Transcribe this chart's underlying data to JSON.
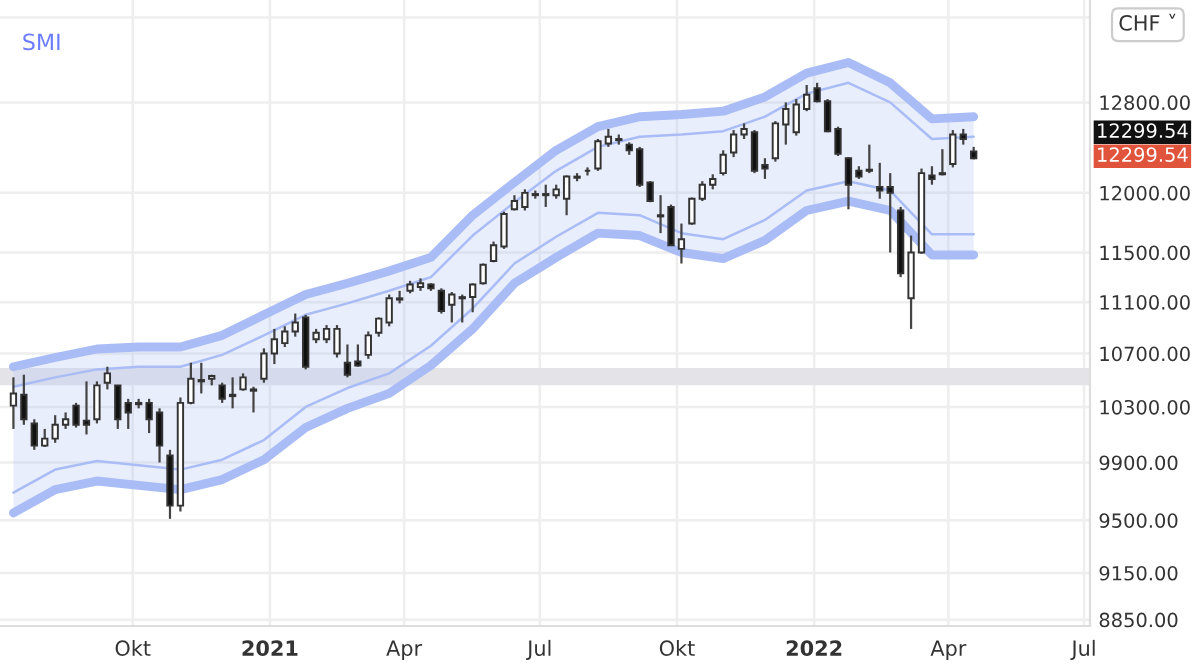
{
  "chart_data": {
    "type": "candlestick",
    "title": "SMI",
    "x": [
      "2020-07-13",
      "2020-07-20",
      "2020-07-27",
      "2020-08-03",
      "2020-08-10",
      "2020-08-17",
      "2020-08-24",
      "2020-08-31",
      "2020-09-07",
      "2020-09-14",
      "2020-09-21",
      "2020-09-28",
      "2020-10-05",
      "2020-10-12",
      "2020-10-19",
      "2020-10-26",
      "2020-11-02",
      "2020-11-09",
      "2020-11-16",
      "2020-11-23",
      "2020-11-30",
      "2020-12-07",
      "2020-12-14",
      "2020-12-21",
      "2020-12-28",
      "2021-01-04",
      "2021-01-11",
      "2021-01-18",
      "2021-01-25",
      "2021-02-01",
      "2021-02-08",
      "2021-02-15",
      "2021-02-22",
      "2021-03-01",
      "2021-03-08",
      "2021-03-15",
      "2021-03-22",
      "2021-03-29",
      "2021-04-05",
      "2021-04-12",
      "2021-04-19",
      "2021-04-26",
      "2021-05-03",
      "2021-05-10",
      "2021-05-17",
      "2021-05-24",
      "2021-05-31",
      "2021-06-07",
      "2021-06-14",
      "2021-06-21",
      "2021-06-28",
      "2021-07-05",
      "2021-07-12",
      "2021-07-19",
      "2021-07-26",
      "2021-08-02",
      "2021-08-09",
      "2021-08-16",
      "2021-08-23",
      "2021-08-30",
      "2021-09-06",
      "2021-09-13",
      "2021-09-20",
      "2021-09-27",
      "2021-10-04",
      "2021-10-11",
      "2021-10-18",
      "2021-10-25",
      "2021-11-01",
      "2021-11-08",
      "2021-11-15",
      "2021-11-22",
      "2021-11-29",
      "2021-12-06",
      "2021-12-13",
      "2021-12-20",
      "2021-12-27",
      "2022-01-03",
      "2022-01-10",
      "2022-01-17",
      "2022-01-24",
      "2022-01-31",
      "2022-02-07",
      "2022-02-14",
      "2022-02-21",
      "2022-02-28",
      "2022-03-07",
      "2022-03-14",
      "2022-03-21",
      "2022-03-28",
      "2022-04-04",
      "2022-04-11",
      "2022-04-18"
    ],
    "ohlc": [
      [
        10310,
        10520,
        10140,
        10400
      ],
      [
        10390,
        10540,
        10170,
        10210
      ],
      [
        10180,
        10210,
        9990,
        10020
      ],
      [
        10020,
        10140,
        10010,
        10070
      ],
      [
        10070,
        10240,
        10040,
        10170
      ],
      [
        10170,
        10260,
        10140,
        10210
      ],
      [
        10310,
        10330,
        10150,
        10170
      ],
      [
        10200,
        10490,
        10100,
        10170
      ],
      [
        10210,
        10490,
        10180,
        10460
      ],
      [
        10480,
        10600,
        10430,
        10550
      ],
      [
        10460,
        10460,
        10140,
        10210
      ],
      [
        10330,
        10360,
        10140,
        10260
      ],
      [
        10320,
        10360,
        10290,
        10330
      ],
      [
        10330,
        10360,
        10110,
        10210
      ],
      [
        10260,
        10290,
        9900,
        10020
      ],
      [
        9950,
        9990,
        9510,
        9600
      ],
      [
        9600,
        10370,
        9560,
        10330
      ],
      [
        10330,
        10630,
        10320,
        10510
      ],
      [
        10500,
        10630,
        10400,
        10490
      ],
      [
        10510,
        10540,
        10460,
        10530
      ],
      [
        10460,
        10480,
        10330,
        10360
      ],
      [
        10380,
        10520,
        10290,
        10390
      ],
      [
        10430,
        10550,
        10420,
        10520
      ],
      [
        10430,
        10450,
        10260,
        10420
      ],
      [
        10510,
        10740,
        10480,
        10700
      ],
      [
        10700,
        10890,
        10620,
        10810
      ],
      [
        10780,
        10910,
        10750,
        10870
      ],
      [
        10870,
        11010,
        10830,
        10940
      ],
      [
        10980,
        11000,
        10580,
        10600
      ],
      [
        10810,
        10890,
        10780,
        10860
      ],
      [
        10810,
        10920,
        10780,
        10890
      ],
      [
        10700,
        10920,
        10670,
        10890
      ],
      [
        10630,
        10770,
        10520,
        10540
      ],
      [
        10640,
        10770,
        10600,
        10610
      ],
      [
        10690,
        10870,
        10660,
        10840
      ],
      [
        10860,
        10980,
        10830,
        10970
      ],
      [
        10940,
        11160,
        10910,
        11130
      ],
      [
        11130,
        11190,
        11090,
        11120
      ],
      [
        11190,
        11270,
        11170,
        11240
      ],
      [
        11220,
        11290,
        11190,
        11250
      ],
      [
        11240,
        11250,
        11190,
        11210
      ],
      [
        11190,
        11210,
        11010,
        11030
      ],
      [
        11080,
        11180,
        10940,
        11160
      ],
      [
        11140,
        11160,
        10940,
        11130
      ],
      [
        11140,
        11250,
        11020,
        11240
      ],
      [
        11250,
        11410,
        11240,
        11400
      ],
      [
        11430,
        11590,
        11420,
        11560
      ],
      [
        11550,
        11840,
        11530,
        11820
      ],
      [
        11860,
        11980,
        11850,
        11930
      ],
      [
        11880,
        12030,
        11850,
        12000
      ],
      [
        11990,
        12020,
        11950,
        11980
      ],
      [
        11990,
        12070,
        11880,
        11980
      ],
      [
        11980,
        12070,
        11950,
        12030
      ],
      [
        11950,
        12150,
        11810,
        12140
      ],
      [
        12140,
        12170,
        12100,
        12130
      ],
      [
        12190,
        12220,
        12150,
        12190
      ],
      [
        12210,
        12470,
        12190,
        12450
      ],
      [
        12430,
        12560,
        12400,
        12490
      ],
      [
        12470,
        12510,
        12420,
        12460
      ],
      [
        12420,
        12440,
        12330,
        12370
      ],
      [
        12380,
        12400,
        12050,
        12070
      ],
      [
        12090,
        12100,
        11920,
        11930
      ],
      [
        11810,
        11980,
        11660,
        11800
      ],
      [
        11880,
        11900,
        11560,
        11560
      ],
      [
        11530,
        11740,
        11410,
        11610
      ],
      [
        11740,
        11960,
        11730,
        11950
      ],
      [
        11950,
        12100,
        11930,
        12070
      ],
      [
        12070,
        12160,
        12030,
        12120
      ],
      [
        12170,
        12370,
        12150,
        12330
      ],
      [
        12350,
        12550,
        12310,
        12510
      ],
      [
        12510,
        12610,
        12470,
        12560
      ],
      [
        12530,
        12550,
        12170,
        12190
      ],
      [
        12240,
        12300,
        12120,
        12210
      ],
      [
        12300,
        12630,
        12270,
        12610
      ],
      [
        12600,
        12800,
        12420,
        12740
      ],
      [
        12530,
        12830,
        12500,
        12780
      ],
      [
        12740,
        12960,
        12720,
        12870
      ],
      [
        12930,
        12980,
        12800,
        12810
      ],
      [
        12810,
        12830,
        12530,
        12540
      ],
      [
        12560,
        12580,
        12320,
        12340
      ],
      [
        12300,
        12310,
        11860,
        12070
      ],
      [
        12190,
        12230,
        12120,
        12140
      ],
      [
        12190,
        12420,
        12170,
        12200
      ],
      [
        12050,
        12260,
        11950,
        12020
      ],
      [
        12050,
        12170,
        11500,
        12000
      ],
      [
        11850,
        11880,
        11300,
        11330
      ],
      [
        11130,
        11640,
        10890,
        11500
      ],
      [
        11500,
        12210,
        11490,
        12170
      ],
      [
        12150,
        12230,
        12070,
        12120
      ],
      [
        12170,
        12380,
        12150,
        12160
      ],
      [
        12250,
        12550,
        12220,
        12510
      ],
      [
        12510,
        12560,
        12420,
        12470
      ],
      [
        12360,
        12400,
        12290,
        12299.54
      ]
    ],
    "series": [
      {
        "type": "line",
        "color": "#a9bcf6",
        "x": [
          "2020-07-13",
          "2020-08-10",
          "2020-09-07",
          "2020-10-05",
          "2020-11-02",
          "2020-11-30",
          "2020-12-28",
          "2021-01-25",
          "2021-02-22",
          "2021-03-22",
          "2021-04-19",
          "2021-05-17",
          "2021-06-14",
          "2021-07-12",
          "2021-08-09",
          "2021-09-06",
          "2021-10-04",
          "2021-11-01",
          "2021-11-29",
          "2021-12-27",
          "2022-01-24",
          "2022-02-21",
          "2022-03-21",
          "2022-04-18"
        ],
        "values": [
          10600,
          10670,
          10735,
          10750,
          10750,
          10840,
          11000,
          11160,
          11250,
          11350,
          11460,
          11810,
          12090,
          12370,
          12580,
          12670,
          12690,
          12720,
          12850,
          13070,
          13170,
          12980,
          12650,
          12670
        ]
      },
      {
        "type": "line",
        "color": "#a9bcf6",
        "x": [
          "2020-07-13",
          "2020-08-10",
          "2020-09-07",
          "2020-10-05",
          "2020-11-02",
          "2020-11-30",
          "2020-12-28",
          "2021-01-25",
          "2021-02-22",
          "2021-03-22",
          "2021-04-19",
          "2021-05-17",
          "2021-06-14",
          "2021-07-12",
          "2021-08-09",
          "2021-09-06",
          "2021-10-04",
          "2021-11-01",
          "2021-11-29",
          "2021-12-27",
          "2022-01-24",
          "2022-02-21",
          "2022-03-21",
          "2022-04-18"
        ],
        "values": [
          9550,
          9710,
          9770,
          9740,
          9710,
          9780,
          9920,
          10150,
          10290,
          10400,
          10610,
          10890,
          11250,
          11460,
          11660,
          11640,
          11500,
          11450,
          11600,
          11850,
          11930,
          11850,
          11480,
          11480
        ]
      },
      {
        "type": "line",
        "color": "#a9bcf6",
        "x": [
          "2020-07-13",
          "2020-08-10",
          "2020-09-07",
          "2020-10-05",
          "2020-11-02",
          "2020-11-30",
          "2020-12-28",
          "2021-01-25",
          "2021-02-22",
          "2021-03-22",
          "2021-04-19",
          "2021-05-17",
          "2021-06-14",
          "2021-07-12",
          "2021-08-09",
          "2021-09-06",
          "2021-10-04",
          "2021-11-01",
          "2021-11-29",
          "2021-12-27",
          "2022-01-24",
          "2022-02-21",
          "2022-03-21",
          "2022-04-18"
        ],
        "values": [
          10450,
          10520,
          10580,
          10600,
          10600,
          10690,
          10840,
          11000,
          11090,
          11190,
          11300,
          11640,
          11920,
          12190,
          12400,
          12490,
          12510,
          12540,
          12670,
          12880,
          12980,
          12800,
          12470,
          12490
        ],
        "lower": [
          9550,
          9710,
          9770,
          9740,
          9710,
          9780,
          9920,
          10150,
          10290,
          10400,
          10610,
          10890,
          11250,
          11460,
          11660,
          11640,
          11500,
          11450,
          11600,
          11850,
          11930,
          11850,
          11480,
          11480
        ],
        "upper": [
          10600,
          10670,
          10735,
          10750,
          10750,
          10840,
          11000,
          11160,
          11250,
          11350,
          11460,
          11810,
          12090,
          12370,
          12580,
          12670,
          12690,
          12720,
          12850,
          13070,
          13170,
          12980,
          12650,
          12670
        ]
      },
      {
        "type": "line",
        "color": "#a9bcf6",
        "x": [
          "2020-07-13",
          "2020-08-10",
          "2020-09-07",
          "2020-10-05",
          "2020-11-02",
          "2020-11-30",
          "2020-12-28",
          "2021-01-25",
          "2021-02-22",
          "2021-03-22",
          "2021-04-19",
          "2021-05-17",
          "2021-06-14",
          "2021-07-12",
          "2021-08-09",
          "2021-09-06",
          "2021-10-04",
          "2021-11-01",
          "2021-11-29",
          "2021-12-27",
          "2022-01-24",
          "2022-02-21",
          "2022-03-21",
          "2022-04-18"
        ],
        "values": [
          9690,
          9850,
          9910,
          9880,
          9850,
          9920,
          10060,
          10300,
          10440,
          10550,
          10760,
          11050,
          11410,
          11630,
          11830,
          11810,
          11660,
          11610,
          11770,
          12020,
          12100,
          12020,
          11650,
          11650
        ]
      }
    ],
    "log": true,
    "xlim": [
      "2020-07-04",
      "2022-07-05"
    ],
    "xticks": [
      {
        "value": "2020-10-01",
        "label": "Okt"
      },
      {
        "value": "2021-01-01",
        "label": "2021"
      },
      {
        "value": "2021-04-01",
        "label": "Apr"
      },
      {
        "value": "2021-07-01",
        "label": "Jul"
      },
      {
        "value": "2021-10-01",
        "label": "Okt"
      },
      {
        "value": "2022-01-01",
        "label": "2022"
      },
      {
        "value": "2022-04-01",
        "label": "Apr"
      },
      {
        "value": "2022-07-01",
        "label": "Jul"
      }
    ],
    "ylim": [
      8810,
      13770
    ],
    "yticks": [
      {
        "value": 8850,
        "label": "8850.00"
      },
      {
        "value": 9150,
        "label": "9150.00"
      },
      {
        "value": 9500,
        "label": "9500.00"
      },
      {
        "value": 9900,
        "label": "9900.00"
      },
      {
        "value": 10300,
        "label": "10300.00"
      },
      {
        "value": 10700,
        "label": "10700.00"
      },
      {
        "value": 11100,
        "label": "11100.00"
      },
      {
        "value": 11500,
        "label": "11500.00"
      },
      {
        "value": 12000,
        "label": "12000.00"
      },
      {
        "value": 12800,
        "label": "12800.00"
      },
      {
        "value": 13600,
        "label": null
      }
    ],
    "grid": true,
    "bands": [
      {
        "axis": "y",
        "from": 10460,
        "to": 10590,
        "color": "#e4e4e8"
      }
    ],
    "annotations": [
      "CHF ˅",
      "12299.54",
      "12299.54"
    ]
  }
}
